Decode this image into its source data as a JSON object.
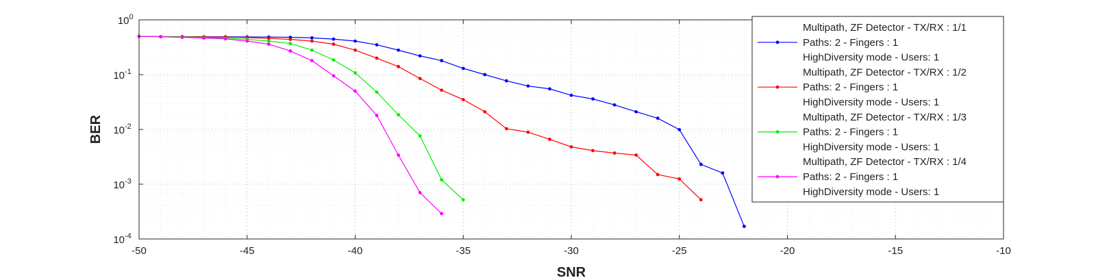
{
  "chart_data": {
    "type": "line",
    "xlabel": "SNR",
    "ylabel": "BER",
    "xlim": [
      -50,
      -10
    ],
    "ylim": [
      0.0001,
      1
    ],
    "yscale": "log",
    "grid": true,
    "grid_minor": true,
    "legend_position": "top-right",
    "x_ticks": [
      "-50",
      "-45",
      "-40",
      "-35",
      "-30",
      "-25",
      "-20",
      "-15",
      "-10"
    ],
    "y_ticks": [
      {
        "base": "10",
        "exp": "0"
      },
      {
        "base": "10",
        "exp": "-1"
      },
      {
        "base": "10",
        "exp": "-2"
      },
      {
        "base": "10",
        "exp": "-3"
      },
      {
        "base": "10",
        "exp": "-4"
      }
    ],
    "series": [
      {
        "name_lines": [
          "Multipath, ZF Detector - TX/RX : 1/1",
          "Paths: 2 - Fingers : 1",
          "HighDiversity mode - Users: 1"
        ],
        "color": "#0000ff",
        "x": [
          -50,
          -49,
          -48,
          -47,
          -46,
          -45,
          -44,
          -43,
          -42,
          -41,
          -40,
          -39,
          -38,
          -37,
          -36,
          -35,
          -34,
          -33,
          -32,
          -31,
          -30,
          -29,
          -28,
          -27,
          -26,
          -25,
          -24,
          -23,
          -22
        ],
        "y": [
          0.5,
          0.495,
          0.495,
          0.492,
          0.49,
          0.488,
          0.485,
          0.48,
          0.47,
          0.445,
          0.41,
          0.35,
          0.28,
          0.22,
          0.18,
          0.13,
          0.1,
          0.077,
          0.062,
          0.055,
          0.042,
          0.036,
          0.028,
          0.021,
          0.016,
          0.0099,
          0.0023,
          0.0016,
          0.00017
        ]
      },
      {
        "name_lines": [
          "Multipath, ZF Detector - TX/RX : 1/2",
          "Paths: 2 - Fingers : 1",
          "HighDiversity mode - Users: 1"
        ],
        "color": "#ff0000",
        "x": [
          -50,
          -49,
          -48,
          -47,
          -46,
          -45,
          -44,
          -43,
          -42,
          -41,
          -40,
          -39,
          -38,
          -37,
          -36,
          -35,
          -34,
          -33,
          -32,
          -31,
          -30,
          -29,
          -28,
          -27,
          -26,
          -25,
          -24
        ],
        "y": [
          0.5,
          0.495,
          0.492,
          0.488,
          0.483,
          0.475,
          0.46,
          0.44,
          0.41,
          0.36,
          0.28,
          0.2,
          0.14,
          0.085,
          0.052,
          0.035,
          0.021,
          0.0103,
          0.0089,
          0.0066,
          0.0048,
          0.0041,
          0.0037,
          0.0034,
          0.0015,
          0.00125,
          0.00052
        ]
      },
      {
        "name_lines": [
          "Multipath, ZF Detector - TX/RX : 1/3",
          "Paths: 2 - Fingers : 1",
          "HighDiversity mode - Users: 1"
        ],
        "color": "#00ee00",
        "x": [
          -50,
          -49,
          -48,
          -47,
          -46,
          -45,
          -44,
          -43,
          -42,
          -41,
          -40,
          -39,
          -38,
          -37,
          -36,
          -35
        ],
        "y": [
          0.5,
          0.495,
          0.488,
          0.478,
          0.462,
          0.44,
          0.41,
          0.37,
          0.28,
          0.185,
          0.108,
          0.048,
          0.0185,
          0.0076,
          0.0012,
          0.00052
        ]
      },
      {
        "name_lines": [
          "Multipath, ZF Detector - TX/RX : 1/4",
          "Paths: 2 - Fingers : 1",
          "HighDiversity mode - Users: 1"
        ],
        "color": "#ff00ff",
        "x": [
          -50,
          -49,
          -48,
          -47,
          -46,
          -45,
          -44,
          -43,
          -42,
          -41,
          -40,
          -39,
          -38,
          -37,
          -36
        ],
        "y": [
          0.5,
          0.49,
          0.48,
          0.465,
          0.45,
          0.41,
          0.36,
          0.27,
          0.18,
          0.095,
          0.05,
          0.018,
          0.0034,
          0.0007,
          0.00029
        ]
      }
    ]
  }
}
